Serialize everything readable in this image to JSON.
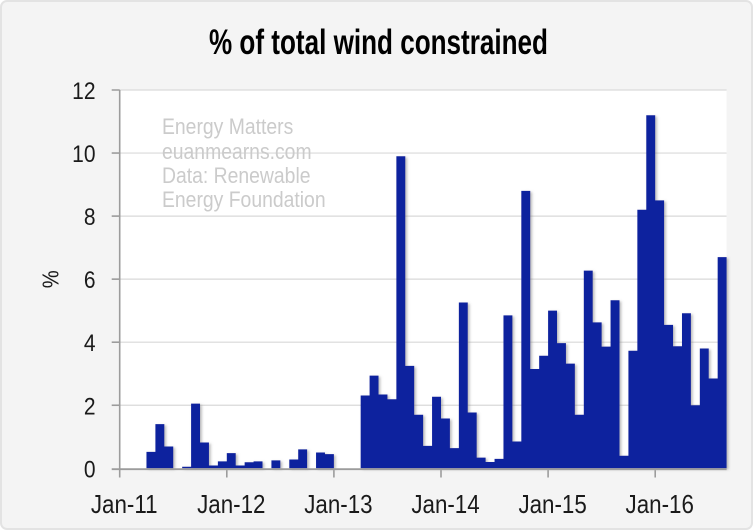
{
  "chart_data": {
    "type": "bar",
    "title": "% of total wind constrained",
    "ylabel": "%",
    "xlabel": "",
    "ylim": [
      0,
      12
    ],
    "yticks": [
      0,
      2,
      4,
      6,
      8,
      10,
      12
    ],
    "xtick_labels": [
      "Jan-11",
      "Jan-12",
      "Jan-13",
      "Jan-14",
      "Jan-15",
      "Jan-16"
    ],
    "xtick_month_interval": 12,
    "grid": "horizontal",
    "legend": "none",
    "categories": [
      "Jan-11",
      "Feb-11",
      "Mar-11",
      "Apr-11",
      "May-11",
      "Jun-11",
      "Jul-11",
      "Aug-11",
      "Sep-11",
      "Oct-11",
      "Nov-11",
      "Dec-11",
      "Jan-12",
      "Feb-12",
      "Mar-12",
      "Apr-12",
      "May-12",
      "Jun-12",
      "Jul-12",
      "Aug-12",
      "Sep-12",
      "Oct-12",
      "Nov-12",
      "Dec-12",
      "Jan-13",
      "Feb-13",
      "Mar-13",
      "Apr-13",
      "May-13",
      "Jun-13",
      "Jul-13",
      "Aug-13",
      "Sep-13",
      "Oct-13",
      "Nov-13",
      "Dec-13",
      "Jan-14",
      "Feb-14",
      "Mar-14",
      "Apr-14",
      "May-14",
      "Jun-14",
      "Jul-14",
      "Aug-14",
      "Sep-14",
      "Oct-14",
      "Nov-14",
      "Dec-14",
      "Jan-15",
      "Feb-15",
      "Mar-15",
      "Apr-15",
      "May-15",
      "Jun-15",
      "Jul-15",
      "Aug-15",
      "Sep-15",
      "Oct-15",
      "Nov-15",
      "Dec-15",
      "Jan-16",
      "Feb-16",
      "Mar-16",
      "Apr-16",
      "May-16",
      "Jun-16",
      "Jul-16",
      "Aug-16"
    ],
    "values": [
      0,
      0,
      0,
      0.52,
      1.4,
      0.69,
      0,
      0.05,
      2.05,
      0.82,
      0.09,
      0.22,
      0.48,
      0.09,
      0.19,
      0.22,
      0,
      0.25,
      0,
      0.28,
      0.6,
      0,
      0.5,
      0.45,
      0,
      0,
      0,
      2.31,
      2.94,
      2.34,
      2.19,
      9.9,
      3.25,
      1.7,
      0.71,
      2.27,
      1.58,
      0.64,
      5.26,
      1.77,
      0.34,
      0.2,
      0.3,
      4.85,
      0.85,
      8.8,
      3.15,
      3.57,
      5.0,
      3.97,
      3.32,
      1.7,
      6.27,
      4.63,
      3.86,
      5.33,
      0.4,
      3.73,
      8.2,
      11.2,
      8.5,
      4.55,
      3.87,
      4.92,
      2.0,
      3.8,
      2.85,
      6.7
    ],
    "watermark_lines": [
      "Energy Matters",
      "euanmearns.com",
      "Data: Renewable",
      "Energy Foundation"
    ],
    "colors": {
      "bar": "#10209e",
      "gridline": "#d9d9d9",
      "axis": "#9c9c9c",
      "tick_text": "#1a1a1a",
      "title_text": "#000000",
      "watermark_text": "#cbcbcb",
      "plot_background": "#ffffff",
      "canvas_background": "#f4f4f4",
      "canvas_border": "#e3e3e3"
    }
  }
}
